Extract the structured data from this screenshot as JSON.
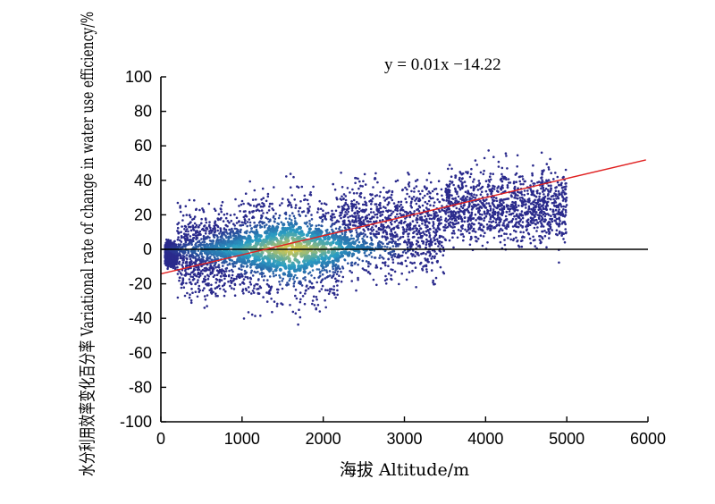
{
  "chart_data": {
    "type": "scatter",
    "xlabel": "海拔 Altitude/m",
    "ylabel": "水分利用效率变化百分率 Variational rate of change in water use efficiency/%",
    "xlim": [
      0,
      6000
    ],
    "ylim": [
      -100,
      100
    ],
    "xticks": [
      "0",
      "1000",
      "2000",
      "3000",
      "4000",
      "5000",
      "6000"
    ],
    "yticks": [
      "100",
      "80",
      "60",
      "40",
      "20",
      "0",
      "-20",
      "-40",
      "-60",
      "-80",
      "-100"
    ],
    "grid": false,
    "colormap": "density (dark blue → cyan → yellow)",
    "colors": {
      "low_density": "#2a2a8c",
      "mid_density": "#2a9fc4",
      "high_density": "#f5d13a",
      "regression_line": "#e02020",
      "zero_line": "#000000"
    },
    "regression": {
      "equation_label": "y = 0.01x −14.22",
      "slope": 0.01106,
      "intercept": -14.22,
      "x_range": [
        0,
        5975
      ]
    },
    "reference_line": {
      "y": 0
    },
    "distribution_summary": [
      {
        "x_from": 50,
        "x_to": 200,
        "y_mean": -3,
        "y_spread": 6
      },
      {
        "x_from": 200,
        "x_to": 1000,
        "y_mean": -1,
        "y_spread": 22
      },
      {
        "x_from": 1000,
        "x_to": 2200,
        "y_mean": 1,
        "y_spread": 28
      },
      {
        "x_from": 2200,
        "x_to": 3500,
        "y_mean": 12,
        "y_spread": 24
      },
      {
        "x_from": 3500,
        "x_to": 5000,
        "y_mean": 25,
        "y_spread": 20
      }
    ]
  }
}
